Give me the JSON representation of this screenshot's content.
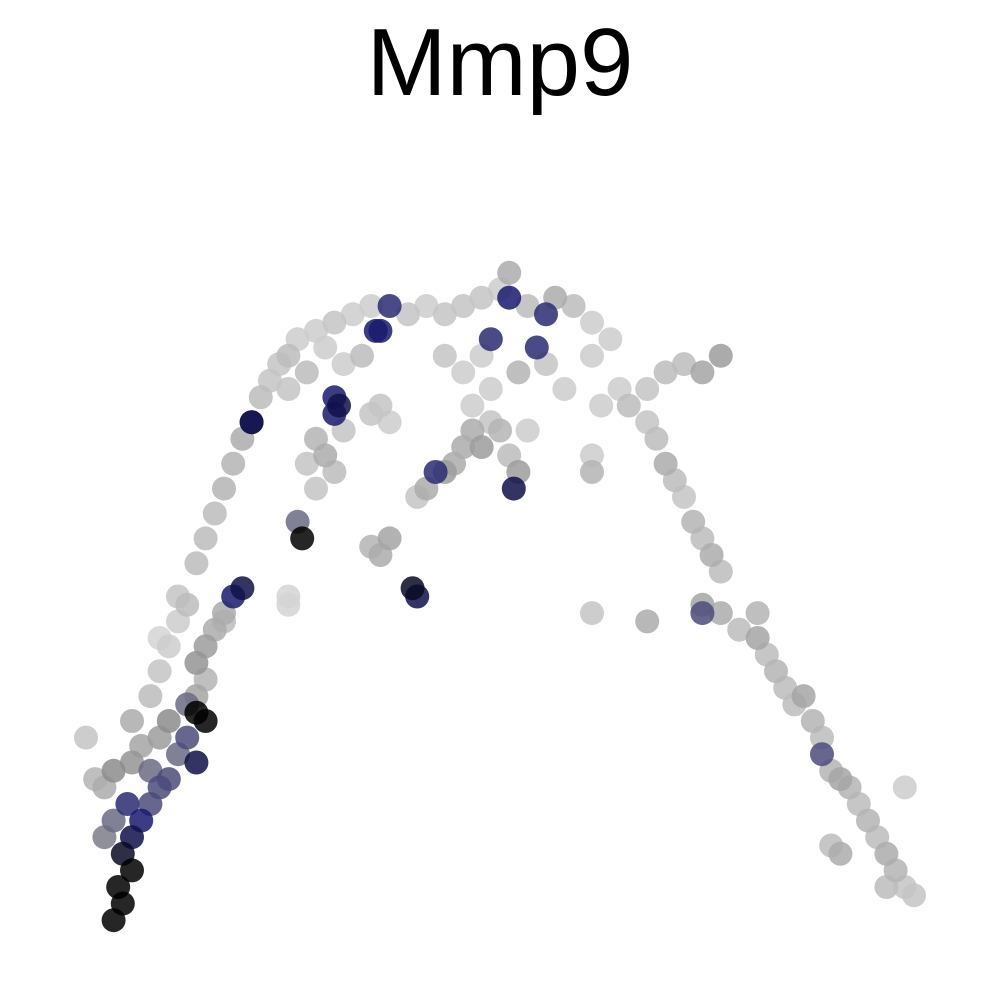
{
  "chart_data": {
    "type": "scatter",
    "title": "Mmp9",
    "xlabel": "",
    "ylabel": "",
    "axes_visible": false,
    "grid": false,
    "legend": "none",
    "color_scale": {
      "low": "#dcdcdc",
      "mid": "#8c8c8c",
      "high_blue": "#1a1a6e",
      "max": "#000000"
    },
    "xlim": [
      0,
      1
    ],
    "ylim": [
      0,
      1
    ],
    "points": [
      [
        0.08,
        0.06,
        1.0
      ],
      [
        0.09,
        0.08,
        1.0
      ],
      [
        0.085,
        0.1,
        1.0
      ],
      [
        0.1,
        0.12,
        1.0
      ],
      [
        0.09,
        0.14,
        0.95
      ],
      [
        0.1,
        0.16,
        0.9
      ],
      [
        0.11,
        0.18,
        0.85
      ],
      [
        0.095,
        0.2,
        0.8
      ],
      [
        0.12,
        0.2,
        0.7
      ],
      [
        0.13,
        0.22,
        0.7
      ],
      [
        0.12,
        0.24,
        0.6
      ],
      [
        0.14,
        0.23,
        0.7
      ],
      [
        0.15,
        0.26,
        0.6
      ],
      [
        0.16,
        0.28,
        0.7
      ],
      [
        0.17,
        0.25,
        0.9
      ],
      [
        0.18,
        0.3,
        1.0
      ],
      [
        0.17,
        0.31,
        1.0
      ],
      [
        0.16,
        0.32,
        0.6
      ],
      [
        0.14,
        0.3,
        0.5
      ],
      [
        0.13,
        0.28,
        0.4
      ],
      [
        0.11,
        0.27,
        0.35
      ],
      [
        0.1,
        0.25,
        0.45
      ],
      [
        0.08,
        0.24,
        0.5
      ],
      [
        0.07,
        0.22,
        0.3
      ],
      [
        0.08,
        0.18,
        0.6
      ],
      [
        0.07,
        0.16,
        0.55
      ],
      [
        0.06,
        0.23,
        0.25
      ],
      [
        0.05,
        0.28,
        0.15
      ],
      [
        0.1,
        0.3,
        0.3
      ],
      [
        0.12,
        0.33,
        0.2
      ],
      [
        0.13,
        0.36,
        0.15
      ],
      [
        0.14,
        0.39,
        0.1
      ],
      [
        0.15,
        0.42,
        0.1
      ],
      [
        0.16,
        0.44,
        0.2
      ],
      [
        0.17,
        0.37,
        0.45
      ],
      [
        0.18,
        0.39,
        0.4
      ],
      [
        0.19,
        0.41,
        0.3
      ],
      [
        0.2,
        0.43,
        0.3
      ],
      [
        0.21,
        0.45,
        0.85
      ],
      [
        0.22,
        0.46,
        0.9
      ],
      [
        0.2,
        0.42,
        0.2
      ],
      [
        0.18,
        0.35,
        0.25
      ],
      [
        0.17,
        0.33,
        0.35
      ],
      [
        0.15,
        0.45,
        0.15
      ],
      [
        0.13,
        0.4,
        0.05
      ],
      [
        0.17,
        0.49,
        0.2
      ],
      [
        0.18,
        0.52,
        0.2
      ],
      [
        0.19,
        0.55,
        0.2
      ],
      [
        0.2,
        0.58,
        0.25
      ],
      [
        0.21,
        0.61,
        0.25
      ],
      [
        0.22,
        0.64,
        0.3
      ],
      [
        0.23,
        0.66,
        0.85
      ],
      [
        0.24,
        0.69,
        0.2
      ],
      [
        0.25,
        0.71,
        0.15
      ],
      [
        0.26,
        0.73,
        0.15
      ],
      [
        0.27,
        0.74,
        0.2
      ],
      [
        0.28,
        0.76,
        0.1
      ],
      [
        0.3,
        0.77,
        0.1
      ],
      [
        0.32,
        0.78,
        0.15
      ],
      [
        0.34,
        0.79,
        0.1
      ],
      [
        0.36,
        0.8,
        0.1
      ],
      [
        0.37,
        0.77,
        0.85
      ],
      [
        0.38,
        0.8,
        0.8
      ],
      [
        0.4,
        0.79,
        0.15
      ],
      [
        0.42,
        0.8,
        0.1
      ],
      [
        0.44,
        0.79,
        0.15
      ],
      [
        0.46,
        0.8,
        0.15
      ],
      [
        0.48,
        0.81,
        0.15
      ],
      [
        0.5,
        0.82,
        0.1
      ],
      [
        0.51,
        0.84,
        0.3
      ],
      [
        0.51,
        0.81,
        0.85
      ],
      [
        0.53,
        0.8,
        0.2
      ],
      [
        0.55,
        0.79,
        0.8
      ],
      [
        0.56,
        0.81,
        0.3
      ],
      [
        0.58,
        0.8,
        0.2
      ],
      [
        0.6,
        0.78,
        0.1
      ],
      [
        0.62,
        0.76,
        0.1
      ],
      [
        0.49,
        0.76,
        0.8
      ],
      [
        0.54,
        0.75,
        0.8
      ],
      [
        0.52,
        0.72,
        0.25
      ],
      [
        0.6,
        0.74,
        0.1
      ],
      [
        0.57,
        0.7,
        0.1
      ],
      [
        0.55,
        0.73,
        0.15
      ],
      [
        0.48,
        0.74,
        0.1
      ],
      [
        0.46,
        0.72,
        0.1
      ],
      [
        0.44,
        0.74,
        0.15
      ],
      [
        0.35,
        0.74,
        0.2
      ],
      [
        0.33,
        0.73,
        0.1
      ],
      [
        0.31,
        0.75,
        0.1
      ],
      [
        0.29,
        0.72,
        0.2
      ],
      [
        0.27,
        0.7,
        0.15
      ],
      [
        0.32,
        0.69,
        0.85
      ],
      [
        0.32,
        0.67,
        0.85
      ],
      [
        0.33,
        0.65,
        0.15
      ],
      [
        0.3,
        0.64,
        0.25
      ],
      [
        0.31,
        0.62,
        0.3
      ],
      [
        0.32,
        0.6,
        0.2
      ],
      [
        0.3,
        0.58,
        0.15
      ],
      [
        0.29,
        0.61,
        0.15
      ],
      [
        0.28,
        0.54,
        0.6
      ],
      [
        0.285,
        0.52,
        1.0
      ],
      [
        0.37,
        0.68,
        0.15
      ],
      [
        0.38,
        0.66,
        0.1
      ],
      [
        0.36,
        0.67,
        0.15
      ],
      [
        0.38,
        0.52,
        0.35
      ],
      [
        0.37,
        0.5,
        0.3
      ],
      [
        0.36,
        0.51,
        0.25
      ],
      [
        0.41,
        0.45,
        0.9
      ],
      [
        0.405,
        0.46,
        0.95
      ],
      [
        0.27,
        0.44,
        0.05
      ],
      [
        0.44,
        0.6,
        0.4
      ],
      [
        0.42,
        0.58,
        0.3
      ],
      [
        0.43,
        0.6,
        0.8
      ],
      [
        0.45,
        0.61,
        0.3
      ],
      [
        0.46,
        0.63,
        0.3
      ],
      [
        0.47,
        0.65,
        0.3
      ],
      [
        0.48,
        0.63,
        0.4
      ],
      [
        0.49,
        0.66,
        0.15
      ],
      [
        0.5,
        0.65,
        0.25
      ],
      [
        0.52,
        0.6,
        0.4
      ],
      [
        0.515,
        0.58,
        0.9
      ],
      [
        0.51,
        0.62,
        0.2
      ],
      [
        0.53,
        0.65,
        0.1
      ],
      [
        0.47,
        0.68,
        0.1
      ],
      [
        0.49,
        0.7,
        0.1
      ],
      [
        0.41,
        0.57,
        0.15
      ],
      [
        0.6,
        0.6,
        0.25
      ],
      [
        0.6,
        0.62,
        0.1
      ],
      [
        0.61,
        0.68,
        0.1
      ],
      [
        0.63,
        0.7,
        0.1
      ],
      [
        0.64,
        0.68,
        0.2
      ],
      [
        0.66,
        0.7,
        0.15
      ],
      [
        0.68,
        0.72,
        0.2
      ],
      [
        0.7,
        0.73,
        0.2
      ],
      [
        0.72,
        0.72,
        0.35
      ],
      [
        0.74,
        0.74,
        0.4
      ],
      [
        0.66,
        0.66,
        0.15
      ],
      [
        0.67,
        0.64,
        0.2
      ],
      [
        0.68,
        0.61,
        0.3
      ],
      [
        0.69,
        0.59,
        0.2
      ],
      [
        0.7,
        0.57,
        0.15
      ],
      [
        0.71,
        0.54,
        0.25
      ],
      [
        0.72,
        0.52,
        0.2
      ],
      [
        0.73,
        0.5,
        0.3
      ],
      [
        0.74,
        0.48,
        0.2
      ],
      [
        0.72,
        0.44,
        0.35
      ],
      [
        0.72,
        0.43,
        0.7
      ],
      [
        0.74,
        0.43,
        0.3
      ],
      [
        0.76,
        0.41,
        0.2
      ],
      [
        0.78,
        0.43,
        0.25
      ],
      [
        0.78,
        0.4,
        0.35
      ],
      [
        0.79,
        0.38,
        0.2
      ],
      [
        0.8,
        0.36,
        0.25
      ],
      [
        0.81,
        0.34,
        0.2
      ],
      [
        0.82,
        0.32,
        0.2
      ],
      [
        0.83,
        0.33,
        0.35
      ],
      [
        0.84,
        0.3,
        0.25
      ],
      [
        0.85,
        0.28,
        0.2
      ],
      [
        0.85,
        0.26,
        0.7
      ],
      [
        0.86,
        0.24,
        0.25
      ],
      [
        0.87,
        0.23,
        0.35
      ],
      [
        0.88,
        0.22,
        0.25
      ],
      [
        0.89,
        0.2,
        0.2
      ],
      [
        0.9,
        0.18,
        0.25
      ],
      [
        0.91,
        0.16,
        0.2
      ],
      [
        0.92,
        0.14,
        0.3
      ],
      [
        0.93,
        0.12,
        0.25
      ],
      [
        0.94,
        0.1,
        0.15
      ],
      [
        0.95,
        0.09,
        0.15
      ],
      [
        0.92,
        0.1,
        0.2
      ],
      [
        0.94,
        0.22,
        0.1
      ],
      [
        0.87,
        0.14,
        0.3
      ],
      [
        0.86,
        0.15,
        0.2
      ],
      [
        0.66,
        0.42,
        0.3
      ],
      [
        0.6,
        0.43,
        0.15
      ],
      [
        0.27,
        0.45,
        0.05
      ],
      [
        0.23,
        0.66,
        0.9
      ],
      [
        0.325,
        0.68,
        0.9
      ],
      [
        0.365,
        0.77,
        0.85
      ]
    ]
  }
}
